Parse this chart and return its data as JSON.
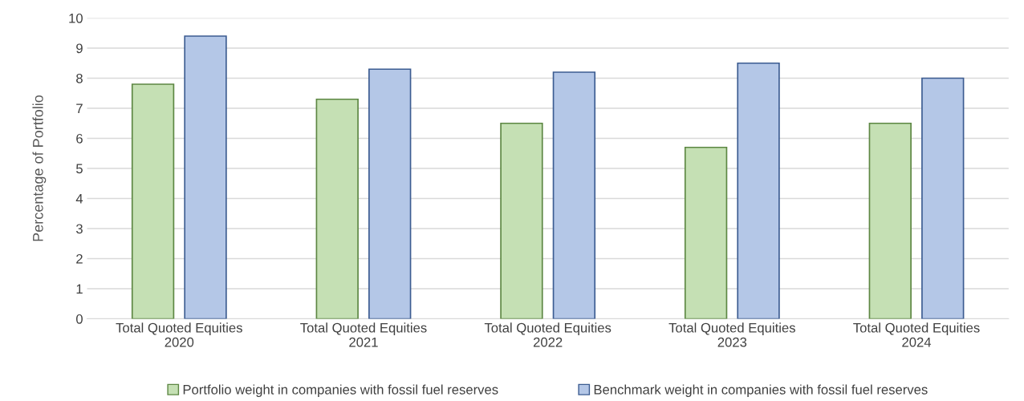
{
  "chart_data": {
    "type": "bar",
    "ylabel": "Percentage of Portfolio",
    "categories": [
      "Total Quoted Equities\n2020",
      "Total Quoted Equities\n2021",
      "Total Quoted Equities\n2022",
      "Total Quoted Equities\n2023",
      "Total Quoted Equities\n2024"
    ],
    "series": [
      {
        "name": "Portfolio weight in companies with fossil fuel reserves",
        "color": "#c5e0b4",
        "values": [
          7.8,
          7.3,
          6.5,
          5.7,
          6.5
        ]
      },
      {
        "name": "Benchmark weight in companies with fossil fuel reserves",
        "color": "#b4c7e7",
        "values": [
          9.4,
          8.3,
          8.2,
          8.5,
          8.0
        ]
      }
    ],
    "ylim": [
      0,
      10
    ],
    "yticks": [
      0,
      1,
      2,
      3,
      4,
      5,
      6,
      7,
      8,
      9,
      10
    ],
    "grid": "y",
    "legend": "bottom"
  }
}
